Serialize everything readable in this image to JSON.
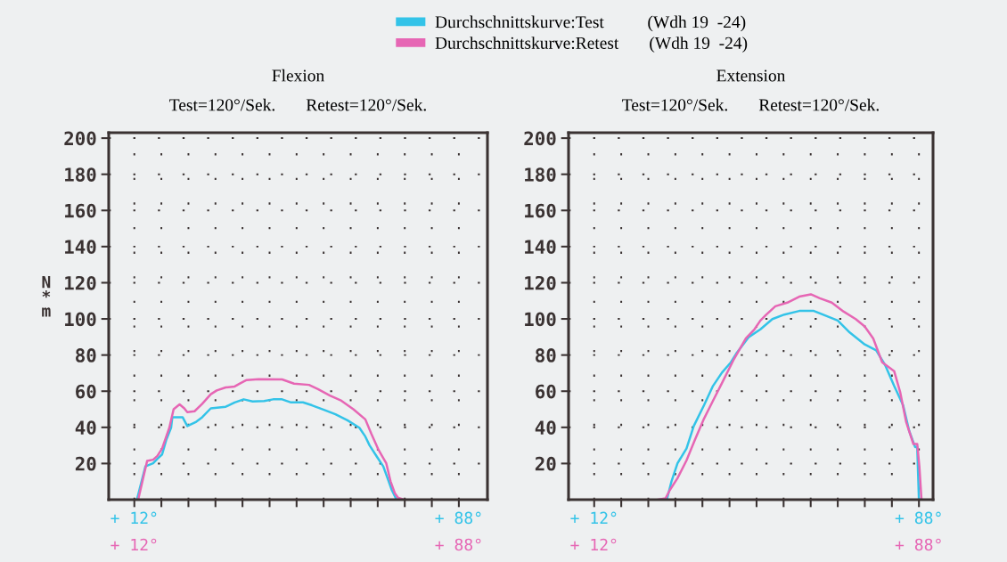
{
  "chart_data": [
    {
      "type": "line",
      "title": "Flexion",
      "subtitle": "Test=120°/Sek.       Retest=120°/Sek.",
      "ylabel": "N*m",
      "xlim": [
        6,
        94.7
      ],
      "ylim": [
        0,
        203
      ],
      "annotations": [
        "+ 12°",
        "+ 88°"
      ],
      "xticks": [
        {
          "value": 12,
          "label": "+ 12°"
        },
        {
          "value": 18.33,
          "label": null
        },
        {
          "value": 24.67,
          "label": null
        },
        {
          "value": 31,
          "label": null
        },
        {
          "value": 37.33,
          "label": null
        },
        {
          "value": 43.67,
          "label": null
        },
        {
          "value": 50,
          "label": null
        },
        {
          "value": 56.33,
          "label": null
        },
        {
          "value": 62.67,
          "label": null
        },
        {
          "value": 69,
          "label": null
        },
        {
          "value": 75.33,
          "label": null
        },
        {
          "value": 81.67,
          "label": null
        },
        {
          "value": 88,
          "label": "+ 88°"
        }
      ],
      "yticks": [
        20,
        40,
        60,
        80,
        100,
        120,
        140,
        160,
        180,
        200
      ],
      "grid": true,
      "legend": "top",
      "series": [
        {
          "name": "Durchschnittskurve:Test          (Wdh 19  -24)",
          "color": "#33c3e8",
          "x": [
            12.6,
            14.6,
            16.4,
            17.4,
            18.5,
            19.5,
            20.6,
            20.9,
            23.3,
            24.4,
            26.5,
            27.9,
            29.9,
            33.4,
            35.5,
            37.6,
            39.7,
            42.4,
            44.5,
            46.6,
            48.7,
            51.5,
            53.6,
            56.4,
            59.1,
            61.9,
            64.7,
            66.1,
            67.1,
            68.9,
            70.3,
            71.3,
            72.3,
            73.4
          ],
          "values": [
            0,
            18.4,
            20.1,
            22.6,
            25.0,
            33.3,
            39.8,
            45.6,
            45.6,
            40.7,
            43.1,
            45.6,
            50.5,
            51.4,
            53.8,
            55.5,
            54.3,
            54.6,
            55.5,
            55.5,
            53.8,
            53.8,
            52.2,
            49.7,
            47.2,
            43.9,
            39.8,
            34.9,
            30.0,
            23.4,
            18.4,
            11.9,
            5.3,
            0
          ]
        },
        {
          "name": "Durchschnittskurve:Retest       (Wdh 19  -24)",
          "color": "#e666b4",
          "x": [
            12.9,
            13.9,
            15.0,
            16.4,
            17.4,
            18.5,
            20.2,
            21.2,
            22.6,
            23.7,
            24.4,
            26.1,
            27.9,
            29.9,
            31.3,
            33.4,
            35.5,
            36.9,
            38.3,
            41.1,
            46.6,
            49.4,
            52.9,
            55.0,
            57.8,
            60.5,
            63.3,
            66.1,
            67.5,
            69.2,
            71.0,
            72.0,
            73.0,
            73.7,
            75.1
          ],
          "values": [
            0,
            10.2,
            21.4,
            22.1,
            24.2,
            28.3,
            39.8,
            50.0,
            52.7,
            50.5,
            48.4,
            48.9,
            53.0,
            58.3,
            60.4,
            62.1,
            62.6,
            64.5,
            66.2,
            66.7,
            66.5,
            64.2,
            63.5,
            61.2,
            57.6,
            54.7,
            50.0,
            44.4,
            36.5,
            27.5,
            20.1,
            10.2,
            3.6,
            1.2,
            0
          ]
        }
      ]
    },
    {
      "type": "line",
      "title": "Extension",
      "subtitle": "Test=120°/Sek.       Retest=120°/Sek.",
      "xlim": [
        6,
        91.3
      ],
      "ylim": [
        0,
        203
      ],
      "annotations": [
        "+ 12°",
        "+ 88°"
      ],
      "xticks": [
        {
          "value": 12,
          "label": "+ 12°"
        },
        {
          "value": 18.33,
          "label": null
        },
        {
          "value": 24.67,
          "label": null
        },
        {
          "value": 31,
          "label": null
        },
        {
          "value": 37.33,
          "label": null
        },
        {
          "value": 43.67,
          "label": null
        },
        {
          "value": 50,
          "label": null
        },
        {
          "value": 56.33,
          "label": null
        },
        {
          "value": 62.67,
          "label": null
        },
        {
          "value": 69,
          "label": null
        },
        {
          "value": 75.33,
          "label": null
        },
        {
          "value": 81.67,
          "label": null
        },
        {
          "value": 88,
          "label": "+ 88°"
        }
      ],
      "yticks": [
        20,
        40,
        60,
        80,
        100,
        120,
        140,
        160,
        180,
        200
      ],
      "grid": true,
      "series": [
        {
          "color": "#33c3e8",
          "x": [
            27.3,
            29.0,
            30.1,
            31.5,
            33.6,
            35.3,
            37.7,
            39.8,
            41.9,
            44.0,
            45.4,
            48.2,
            50.9,
            53.7,
            56.5,
            60.0,
            63.4,
            65.5,
            69.0,
            71.8,
            75.3,
            78.0,
            80.1,
            82.2,
            84.3,
            85.7,
            87.1,
            87.6,
            88.0
          ],
          "values": [
            0,
            0,
            10.2,
            20.1,
            28.3,
            40.7,
            52.2,
            62.9,
            70.3,
            76.0,
            81.3,
            90.0,
            94.2,
            99.9,
            102.4,
            104.4,
            104.4,
            102.4,
            99.1,
            92.5,
            85.9,
            82.6,
            74.4,
            62.9,
            52.2,
            38.2,
            29.1,
            29.1,
            0
          ]
        },
        {
          "color": "#e666b4",
          "x": [
            26.9,
            28.7,
            29.7,
            31.5,
            33.6,
            35.6,
            37.7,
            39.8,
            41.9,
            44.7,
            47.5,
            49.5,
            50.9,
            52.3,
            54.4,
            57.2,
            60.0,
            62.7,
            64.8,
            67.6,
            70.4,
            73.2,
            75.3,
            77.3,
            79.4,
            82.2,
            83.6,
            85.0,
            86.7,
            87.6,
            88.1,
            88.6
          ],
          "values": [
            0,
            0.7,
            5.3,
            11.9,
            21.7,
            33.3,
            44.8,
            54.7,
            64.5,
            77.7,
            89.2,
            94.2,
            99.1,
            102.4,
            107.0,
            109.0,
            112.3,
            113.6,
            111.4,
            109.0,
            104.0,
            99.9,
            95.8,
            89.2,
            76.0,
            71.1,
            59.6,
            43.1,
            30.8,
            30.8,
            18.4,
            0
          ]
        }
      ]
    }
  ]
}
